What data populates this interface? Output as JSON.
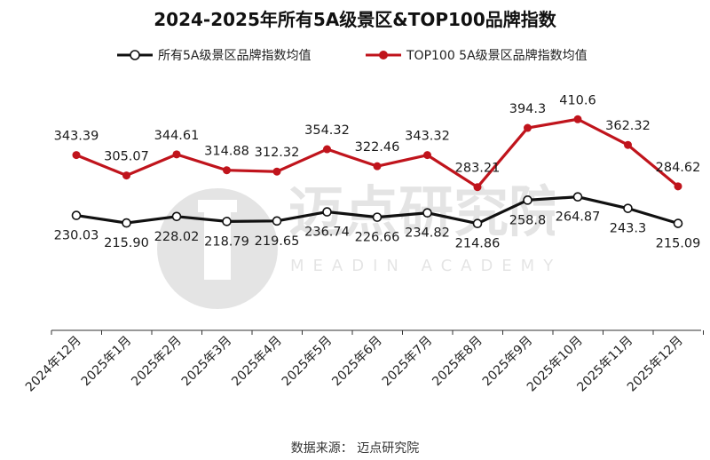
{
  "title": "2024-2025年所有5A级景区&TOP100品牌指数",
  "source": "数据来源： 迈点研究院",
  "watermark": {
    "cn": "迈点研究院",
    "en": "MEADIN ACADEMY"
  },
  "colors": {
    "series1": "#111111",
    "series2": "#c0141c",
    "axis": "#333333"
  },
  "chart_data": {
    "type": "line",
    "categories": [
      "2024年12月",
      "2025年1月",
      "2025年2月",
      "2025年3月",
      "2025年4月",
      "2025年5月",
      "2025年6月",
      "2025年7月",
      "2025年8月",
      "2025年9月",
      "2025年10月",
      "2025年11月",
      "2025年12月"
    ],
    "series": [
      {
        "name": "所有5A级景区品牌指数均值",
        "values": [
          230.03,
          215.9,
          228.02,
          218.79,
          219.65,
          236.74,
          226.66,
          234.82,
          214.86,
          258.8,
          264.87,
          243.3,
          215.09
        ],
        "labels": [
          "230.03",
          "215.90",
          "228.02",
          "218.79",
          "219.65",
          "236.74",
          "226.66",
          "234.82",
          "214.86",
          "258.8",
          "264.87",
          "243.3",
          "215.09"
        ],
        "marker": "hollow-circle",
        "label_position": "below"
      },
      {
        "name": "TOP100 5A级景区品牌指数均值",
        "values": [
          343.39,
          305.07,
          344.61,
          314.88,
          312.32,
          354.32,
          322.46,
          343.32,
          283.21,
          394.3,
          410.6,
          362.32,
          284.62
        ],
        "labels": [
          "343.39",
          "305.07",
          "344.61",
          "314.88",
          "312.32",
          "354.32",
          "322.46",
          "343.32",
          "283.21",
          "394.3",
          "410.6",
          "362.32",
          "284.62"
        ],
        "marker": "filled-circle",
        "label_position": "above"
      }
    ],
    "legend_position": "top",
    "grid": false,
    "xlabel": "",
    "ylabel": ""
  }
}
